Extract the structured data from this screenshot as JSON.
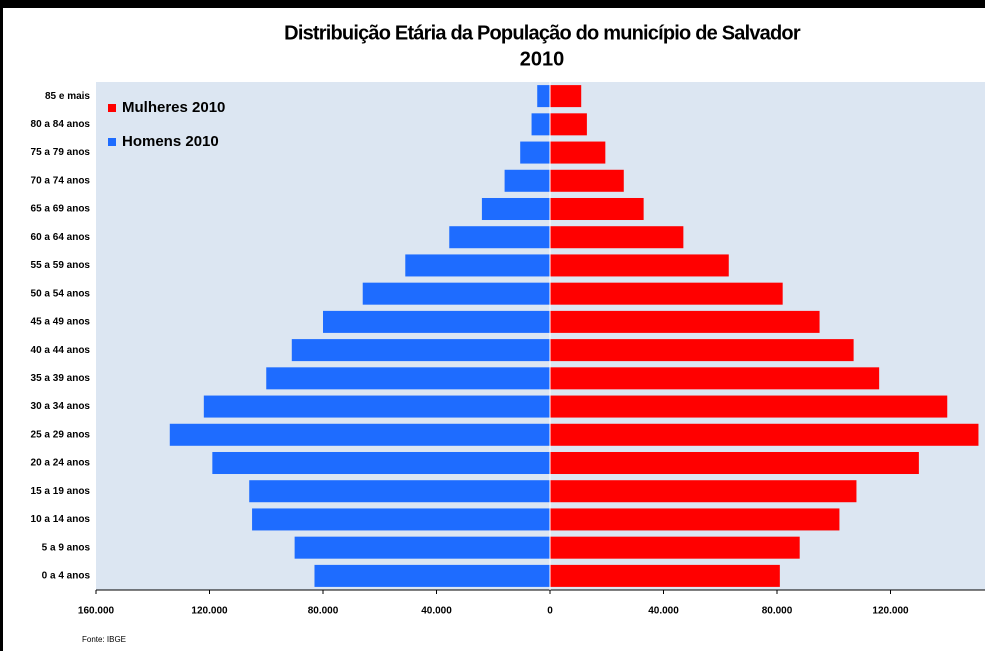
{
  "chart_data": {
    "type": "pyramid",
    "title": "Distribuição Etária da População do município de Salvador",
    "subtitle": "2010",
    "source": "Fonte: IBGE",
    "categories": [
      "0 a 4 anos",
      "5 a 9 anos",
      "10 a 14 anos",
      "15 a 19 anos",
      "20 a 24 anos",
      "25 a 29 anos",
      "30 a 34 anos",
      "35 a 39 anos",
      "40 a 44 anos",
      "45 a 49 anos",
      "50 a 54 anos",
      "55 a 59 anos",
      "60 a 64 anos",
      "65 a 69 anos",
      "70 a 74 anos",
      "75 a 79 anos",
      "80 a 84 anos",
      "85 e mais"
    ],
    "series": [
      {
        "name": "Mulheres 2010",
        "color": "#ff0000",
        "values": [
          81000,
          88000,
          102000,
          108000,
          130000,
          151000,
          140000,
          116000,
          107000,
          95000,
          82000,
          63000,
          47000,
          33000,
          26000,
          19500,
          13000,
          11000
        ]
      },
      {
        "name": "Homens 2010",
        "color": "#1e6cff",
        "values": [
          83000,
          90000,
          105000,
          106000,
          119000,
          134000,
          122000,
          100000,
          91000,
          80000,
          66000,
          51000,
          35500,
          24000,
          16000,
          10500,
          6500,
          4500
        ]
      }
    ],
    "xlim": [
      -160000,
      160000
    ],
    "xticks": [
      {
        "value": -160000,
        "label": "160.000"
      },
      {
        "value": -120000,
        "label": "120.000"
      },
      {
        "value": -80000,
        "label": "80.000"
      },
      {
        "value": -40000,
        "label": "40.000"
      },
      0,
      {
        "value": 40000,
        "label": "40.000"
      },
      {
        "value": 80000,
        "label": "80.000"
      },
      {
        "value": 120000,
        "label": "120.000"
      }
    ],
    "legend": "upper left"
  }
}
